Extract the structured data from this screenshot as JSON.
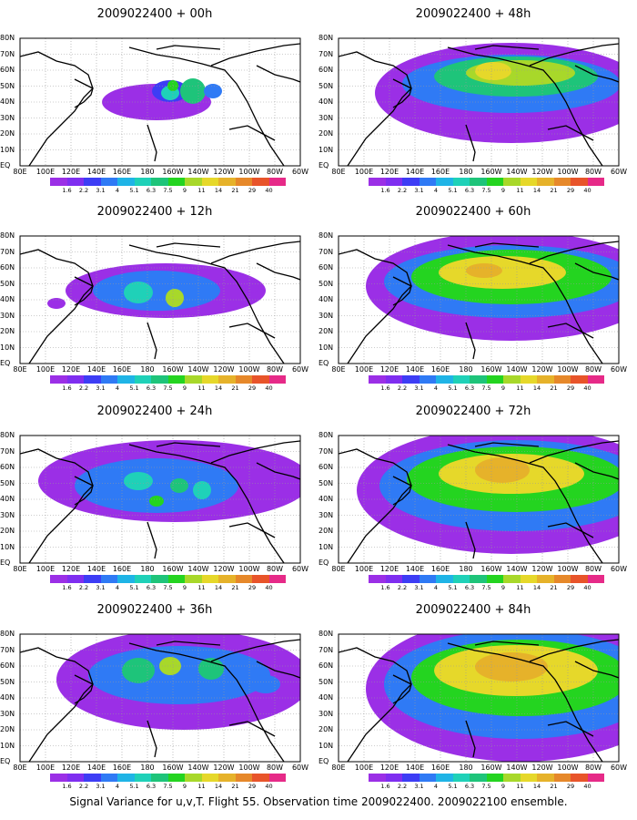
{
  "caption": "Signal Variance for u,v,T. Flight 55. Observation time 2009022400. 2009022100 ensemble.",
  "lat_labels": [
    "80N",
    "70N",
    "60N",
    "50N",
    "40N",
    "30N",
    "20N",
    "10N",
    "EQ"
  ],
  "lon_labels": [
    "80E",
    "100E",
    "120E",
    "140E",
    "160E",
    "180",
    "160W",
    "140W",
    "120W",
    "100W",
    "80W",
    "60W"
  ],
  "colorbar": {
    "ticks": [
      "1.6",
      "2.2",
      "3.1",
      "4",
      "5.1",
      "6.3",
      "7.5",
      "9",
      "11",
      "14",
      "21",
      "29",
      "40"
    ],
    "colors": [
      "#9b2fe6",
      "#7f2ef0",
      "#3d3df5",
      "#2f7af5",
      "#1fb4e6",
      "#1fd1b8",
      "#1ec47a",
      "#24d420",
      "#a8d82a",
      "#e6d82a",
      "#e6b22a",
      "#e6882a",
      "#e8542a",
      "#e62a88"
    ]
  },
  "panels": [
    {
      "id": "p00",
      "title": "2009022400 + 00h"
    },
    {
      "id": "p48",
      "title": "2009022400 + 48h"
    },
    {
      "id": "p12",
      "title": "2009022400 + 12h"
    },
    {
      "id": "p60",
      "title": "2009022400 + 60h"
    },
    {
      "id": "p24",
      "title": "2009022400 + 24h"
    },
    {
      "id": "p72",
      "title": "2009022400 + 72h"
    },
    {
      "id": "p36",
      "title": "2009022400 + 36h"
    },
    {
      "id": "p84",
      "title": "2009022400 + 84h"
    }
  ]
}
